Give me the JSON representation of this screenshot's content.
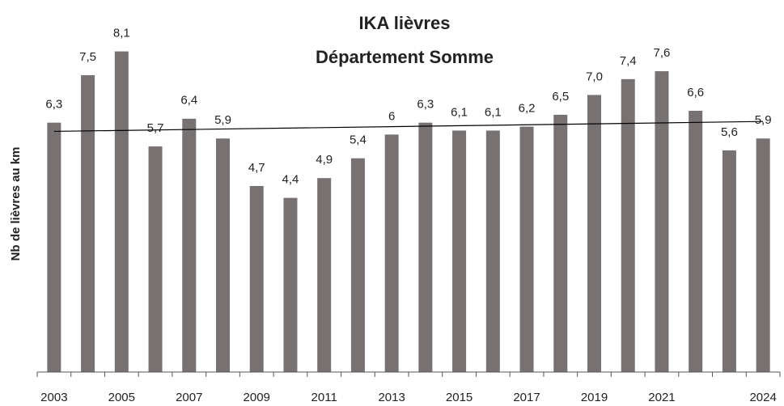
{
  "chart_data": {
    "type": "bar",
    "title": [
      "IKA lièvres",
      "Département Somme"
    ],
    "y_label": "Nb de lièvres au km",
    "categories": [
      "2003",
      null,
      "2005",
      null,
      "2007",
      null,
      "2009",
      null,
      "2011",
      null,
      "2013",
      null,
      "2015",
      null,
      "2017",
      null,
      "2019",
      null,
      "2021",
      null,
      null,
      "2024"
    ],
    "values": [
      6.3,
      7.5,
      8.1,
      5.7,
      6.4,
      5.9,
      4.7,
      4.4,
      4.9,
      5.4,
      6,
      6.3,
      6.1,
      6.1,
      6.2,
      6.5,
      7.0,
      7.4,
      7.6,
      6.6,
      5.6,
      5.9
    ],
    "value_labels": [
      "6,3",
      "7,5",
      "8,1",
      "5,7",
      "6,4",
      "5,9",
      "4,7",
      "4,4",
      "4,9",
      "5,4",
      "6",
      "6,3",
      "6,1",
      "6,1",
      "6,2",
      "6,5",
      "7,0",
      "7,4",
      "7,6",
      "6,6",
      "5,6",
      "5,9"
    ],
    "color": "#777171",
    "ylim": [
      0,
      8.5
    ],
    "trendline": {
      "color": "#000000",
      "values": [
        6.08,
        6.33
      ]
    }
  }
}
